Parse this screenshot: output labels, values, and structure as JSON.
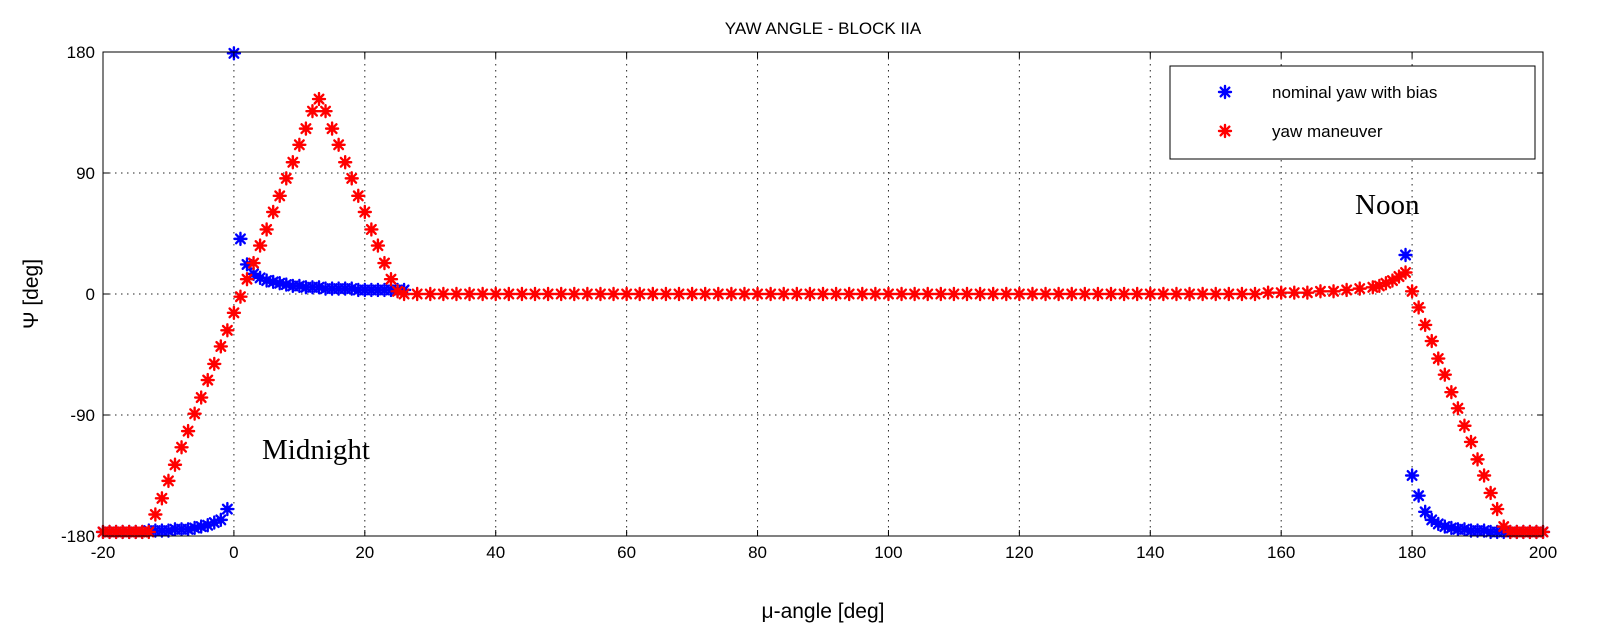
{
  "chart_data": {
    "type": "scatter",
    "title": "YAW ANGLE - BLOCK IIA",
    "xlabel": "μ-angle [deg]",
    "ylabel": "Ψ [deg]",
    "xlim": [
      -20,
      200
    ],
    "ylim": [
      -180,
      180
    ],
    "xticks": [
      "-20",
      "0",
      "20",
      "40",
      "60",
      "80",
      "100",
      "120",
      "140",
      "160",
      "180",
      "200"
    ],
    "yticks": [
      "180",
      "90",
      "0",
      "-90",
      "-180"
    ],
    "grid": true,
    "legend_position": "top-right",
    "series": [
      {
        "name": "nominal yaw with bias",
        "color": "#0000ff",
        "marker": "*",
        "x": [
          -20,
          -19,
          -18,
          -17,
          -16,
          -15,
          -14,
          -13,
          -12,
          -11,
          -10,
          -9,
          -8,
          -7,
          -6,
          -5,
          -4,
          -3,
          -2,
          -1,
          0,
          1,
          2,
          3,
          4,
          5,
          6,
          7,
          8,
          9,
          10,
          11,
          12,
          13,
          14,
          15,
          16,
          17,
          18,
          19,
          20,
          21,
          22,
          23,
          24,
          25,
          26,
          179,
          180,
          181,
          182,
          183,
          184,
          185,
          186,
          187,
          188,
          189,
          190,
          191,
          192,
          193,
          194,
          195,
          196,
          197,
          198,
          199,
          200
        ],
        "y": [
          -177,
          -177,
          -177,
          -177,
          -177,
          -177,
          -177,
          -176,
          -176,
          -176,
          -176,
          -175,
          -175,
          -175,
          -174,
          -173,
          -172,
          -170,
          -168,
          -160,
          179,
          41,
          22,
          15,
          12,
          10,
          9,
          8,
          7,
          6,
          6,
          5,
          5,
          5,
          4,
          4,
          4,
          4,
          4,
          3,
          3,
          3,
          3,
          3,
          3,
          3,
          3,
          29,
          -135,
          -150,
          -162,
          -168,
          -171,
          -173,
          -174,
          -175,
          -175,
          -176,
          -176,
          -176,
          -177,
          -177,
          -177,
          -177,
          -177,
          -177,
          -177,
          -177,
          -177
        ]
      },
      {
        "name": "yaw maneuver",
        "color": "#ff0000",
        "marker": "*",
        "x": [
          -20,
          -19,
          -18,
          -17,
          -16,
          -15,
          -14,
          -13,
          -12,
          -11,
          -10,
          -9,
          -8,
          -7,
          -6,
          -5,
          -4,
          -3,
          -2,
          -1,
          0,
          1,
          2,
          3,
          4,
          5,
          6,
          7,
          8,
          9,
          10,
          11,
          12,
          13,
          14,
          15,
          16,
          17,
          18,
          19,
          20,
          21,
          22,
          23,
          24,
          25,
          26,
          28,
          30,
          32,
          34,
          36,
          38,
          40,
          42,
          44,
          46,
          48,
          50,
          52,
          54,
          56,
          58,
          60,
          62,
          64,
          66,
          68,
          70,
          72,
          74,
          76,
          78,
          80,
          82,
          84,
          86,
          88,
          90,
          92,
          94,
          96,
          98,
          100,
          102,
          104,
          106,
          108,
          110,
          112,
          114,
          116,
          118,
          120,
          122,
          124,
          126,
          128,
          130,
          132,
          134,
          136,
          138,
          140,
          142,
          144,
          146,
          148,
          150,
          152,
          154,
          156,
          158,
          160,
          162,
          164,
          166,
          168,
          170,
          172,
          174,
          175,
          176,
          177,
          178,
          179,
          180,
          181,
          182,
          183,
          184,
          185,
          186,
          187,
          188,
          189,
          190,
          191,
          192,
          193,
          194,
          195,
          196,
          197,
          198,
          199,
          200
        ],
        "y": [
          -177,
          -177,
          -177,
          -177,
          -177,
          -177,
          -177,
          -177,
          -164,
          -152,
          -139,
          -127,
          -114,
          -102,
          -89,
          -77,
          -64,
          -52,
          -39,
          -27,
          -14,
          -2,
          11,
          23,
          36,
          48,
          61,
          73,
          86,
          98,
          111,
          123,
          136,
          145,
          136,
          123,
          111,
          98,
          86,
          73,
          61,
          48,
          36,
          23,
          11,
          2,
          0,
          0,
          0,
          0,
          0,
          0,
          0,
          0,
          0,
          0,
          0,
          0,
          0,
          0,
          0,
          0,
          0,
          0,
          0,
          0,
          0,
          0,
          0,
          0,
          0,
          0,
          0,
          0,
          0,
          0,
          0,
          0,
          0,
          0,
          0,
          0,
          0,
          0,
          0,
          0,
          0,
          0,
          0,
          0,
          0,
          0,
          0,
          0,
          0,
          0,
          0,
          0,
          0,
          0,
          0,
          0,
          0,
          0,
          0,
          0,
          0,
          0,
          0,
          0,
          0,
          0,
          1,
          1,
          1,
          1,
          2,
          2,
          3,
          4,
          5,
          6,
          8,
          10,
          13,
          16,
          2,
          -10,
          -23,
          -35,
          -48,
          -60,
          -73,
          -85,
          -98,
          -110,
          -123,
          -135,
          -148,
          -160,
          -173,
          -177,
          -177,
          -177,
          -177,
          -177,
          -177
        ]
      }
    ],
    "annotations": [
      {
        "text": "Midnight",
        "x": 3.5,
        "y": -112
      },
      {
        "text": "Noon",
        "x": 170,
        "y": 65
      }
    ]
  }
}
